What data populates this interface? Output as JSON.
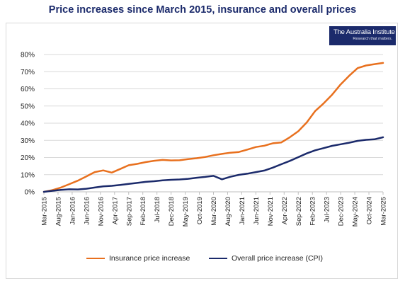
{
  "title": "Price increases since March 2015, insurance and overall prices",
  "logo": {
    "name": "The Australia Institute",
    "tagline": "Research that matters."
  },
  "colors": {
    "insurance": "#e8701e",
    "cpi": "#1b2a6b",
    "grid": "#d9d9d9",
    "axis": "#bfbfbf",
    "text": "#222222"
  },
  "chart_data": {
    "type": "line",
    "title": "Price increases since March 2015, insurance and overall prices",
    "xlabel": "",
    "ylabel": "",
    "ylim": [
      0,
      80
    ],
    "yticks": [
      0,
      10,
      20,
      30,
      40,
      50,
      60,
      70,
      80
    ],
    "ytick_labels": [
      "0%",
      "10%",
      "20%",
      "30%",
      "40%",
      "50%",
      "60%",
      "70%",
      "80%"
    ],
    "grid": true,
    "legend_position": "bottom",
    "x": [
      "Mar-2015",
      "Jun-2015",
      "Sep-2015",
      "Dec-2015",
      "Mar-2016",
      "Jun-2016",
      "Sep-2016",
      "Dec-2016",
      "Mar-2017",
      "Jun-2017",
      "Sep-2017",
      "Dec-2017",
      "Mar-2018",
      "Jun-2018",
      "Sep-2018",
      "Dec-2018",
      "Mar-2019",
      "Jun-2019",
      "Sep-2019",
      "Dec-2019",
      "Mar-2020",
      "Jun-2020",
      "Sep-2020",
      "Dec-2020",
      "Mar-2021",
      "Jun-2021",
      "Sep-2021",
      "Dec-2021",
      "Mar-2022",
      "Jun-2022",
      "Sep-2022",
      "Dec-2022",
      "Mar-2023",
      "Jun-2023",
      "Sep-2023",
      "Dec-2023",
      "Mar-2024",
      "Jun-2024",
      "Sep-2024",
      "Dec-2024",
      "Mar-2025"
    ],
    "xtick_labels": [
      "Mar-2015",
      "Aug-2015",
      "Jan-2016",
      "Jun-2016",
      "Nov-2016",
      "Apr-2017",
      "Sep-2017",
      "Feb-2018",
      "Jul-2018",
      "Dec-2018",
      "May-2019",
      "Oct-2019",
      "Mar-2020",
      "Aug-2020",
      "Jan-2021",
      "Jun-2021",
      "Nov-2021",
      "Apr-2022",
      "Sep-2022",
      "Feb-2023",
      "Jul-2023",
      "Dec-2023",
      "May-2024",
      "Oct-2024",
      "Mar-2025"
    ],
    "series": [
      {
        "name": "Insurance price increase",
        "color": "#e8701e",
        "values": [
          0,
          1,
          2.5,
          4.5,
          6.5,
          9,
          11.5,
          12.5,
          11.2,
          13.3,
          15.5,
          16.3,
          17.3,
          18.1,
          18.6,
          18.3,
          18.4,
          19.1,
          19.6,
          20.3,
          21.3,
          22.1,
          22.8,
          23.2,
          24.6,
          26.1,
          26.9,
          28.3,
          28.8,
          31.8,
          35.3,
          40.4,
          47.1,
          51.6,
          56.6,
          62.6,
          67.6,
          72.1,
          73.6,
          74.4,
          75.1
        ]
      },
      {
        "name": "Overall price increase (CPI)",
        "color": "#1b2a6b",
        "values": [
          0,
          0.6,
          1.1,
          1.5,
          1.4,
          1.8,
          2.5,
          3.2,
          3.5,
          4.0,
          4.6,
          5.2,
          5.8,
          6.2,
          6.7,
          7.0,
          7.2,
          7.6,
          8.2,
          8.7,
          9.3,
          7.3,
          8.8,
          9.9,
          10.6,
          11.5,
          12.4,
          14.1,
          16.1,
          18.0,
          20.2,
          22.4,
          24.2,
          25.5,
          26.8,
          27.7,
          28.6,
          29.7,
          30.3,
          30.6,
          31.8
        ]
      }
    ]
  }
}
